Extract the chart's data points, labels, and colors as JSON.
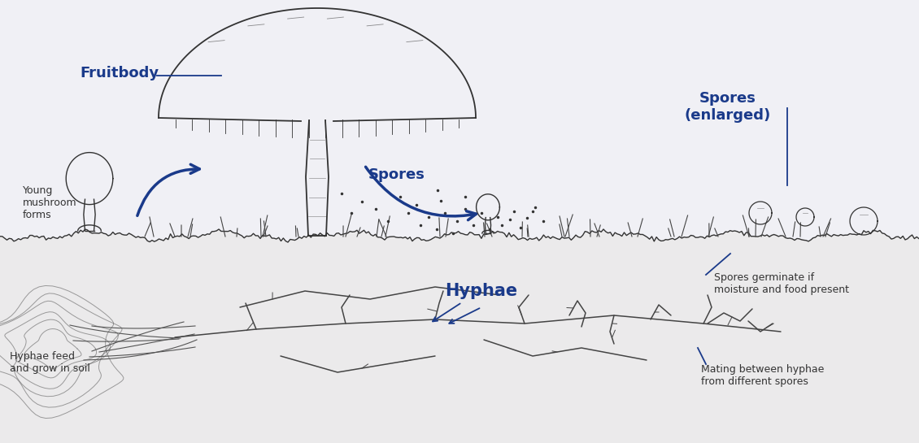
{
  "bg_color": "#f0f0f5",
  "blue": "#1a3a8a",
  "line_color": "#333333",
  "labels": {
    "fruitbody": "Fruitbody",
    "spores": "Spores",
    "spores_enlarged": "Spores\n(enlarged)",
    "hyphae": "Hyphae",
    "young_mushroom": "Young\nmushroom\nforms",
    "hyphae_feed": "Hyphae feed\nand grow in soil",
    "spores_germinate": "Spores germinate if\nmoisture and food present",
    "mating": "Mating between hyphae\nfrom different spores"
  },
  "bold_fontsize": 13,
  "reg_fontsize": 9,
  "hyphae_fontsize": 15,
  "figsize": [
    11.3,
    5.45
  ],
  "dpi": 100
}
